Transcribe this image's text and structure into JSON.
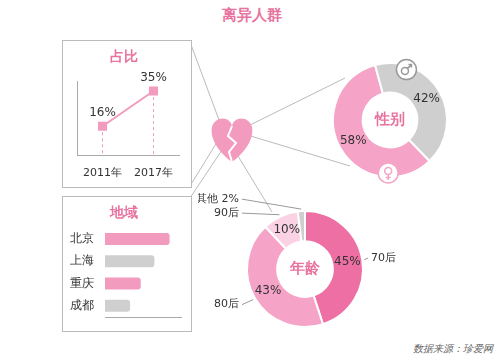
{
  "title": "离异人群",
  "source": "数据来源：珍爱网",
  "chart_data": [
    {
      "type": "line",
      "title": "占比",
      "categories": [
        "2011年",
        "2017年"
      ],
      "values": [
        16,
        35
      ],
      "value_labels": [
        "16%",
        "35%"
      ],
      "data_labels": true,
      "color": "#f29bbf",
      "marker": "square",
      "ylim": [
        0,
        40
      ],
      "grid": false,
      "tick_labels": "x"
    },
    {
      "type": "doughnut",
      "title": "性别",
      "categories": [
        null,
        null
      ],
      "values": [
        58,
        42
      ],
      "value_labels": [
        "58%",
        "42%"
      ],
      "data_labels": true,
      "colors": [
        "#f5a3c7",
        "#cfcfcf"
      ]
    },
    {
      "type": "bar",
      "title": "地域",
      "orientation": "horizontal",
      "categories": [
        "北京",
        "上海",
        "重庆",
        "成都"
      ],
      "values": [
        85,
        65,
        47,
        33
      ],
      "colors": [
        "#f29bbf",
        "#cfcfcf",
        "#f29bbf",
        "#cfcfcf"
      ],
      "xlim": [
        0,
        100
      ],
      "grid": false,
      "tick_labels": "y"
    },
    {
      "type": "doughnut",
      "title": "年龄",
      "categories": [
        "70后",
        "80后",
        "90后",
        "其他"
      ],
      "values": [
        45,
        43,
        10,
        2
      ],
      "value_labels": [
        "45%",
        "43%",
        "10%",
        "2%"
      ],
      "data_labels": true,
      "colors": [
        "#ee6fa4",
        "#f5a3c7",
        "#fad2e3",
        "#cfcfcf"
      ]
    }
  ]
}
